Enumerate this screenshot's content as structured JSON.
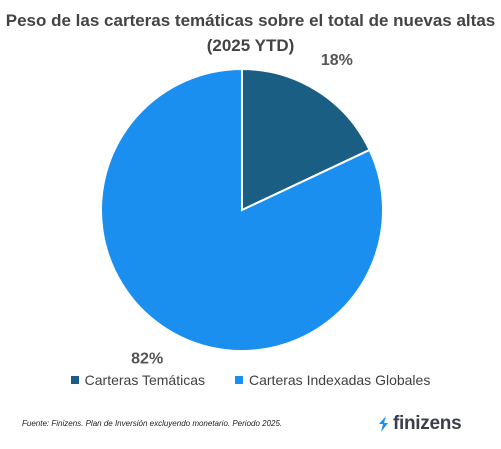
{
  "chart_data": {
    "type": "pie",
    "title": "Peso de las carteras temáticas sobre el total de nuevas altas (2025 YTD)",
    "slices": [
      {
        "name": "Carteras Temáticas",
        "value": 18,
        "label": "18%",
        "color": "#1a5e84"
      },
      {
        "name": "Carteras Indexadas Globales",
        "value": 82,
        "label": "82%",
        "color": "#1a8ff0"
      }
    ],
    "legend_position": "bottom"
  },
  "footer": {
    "source": "Fuente: Finizens. Plan de Inversión excluyendo monetario. Periodo 2025.",
    "brand": "finizens",
    "brand_color": "#1a8ff0"
  }
}
